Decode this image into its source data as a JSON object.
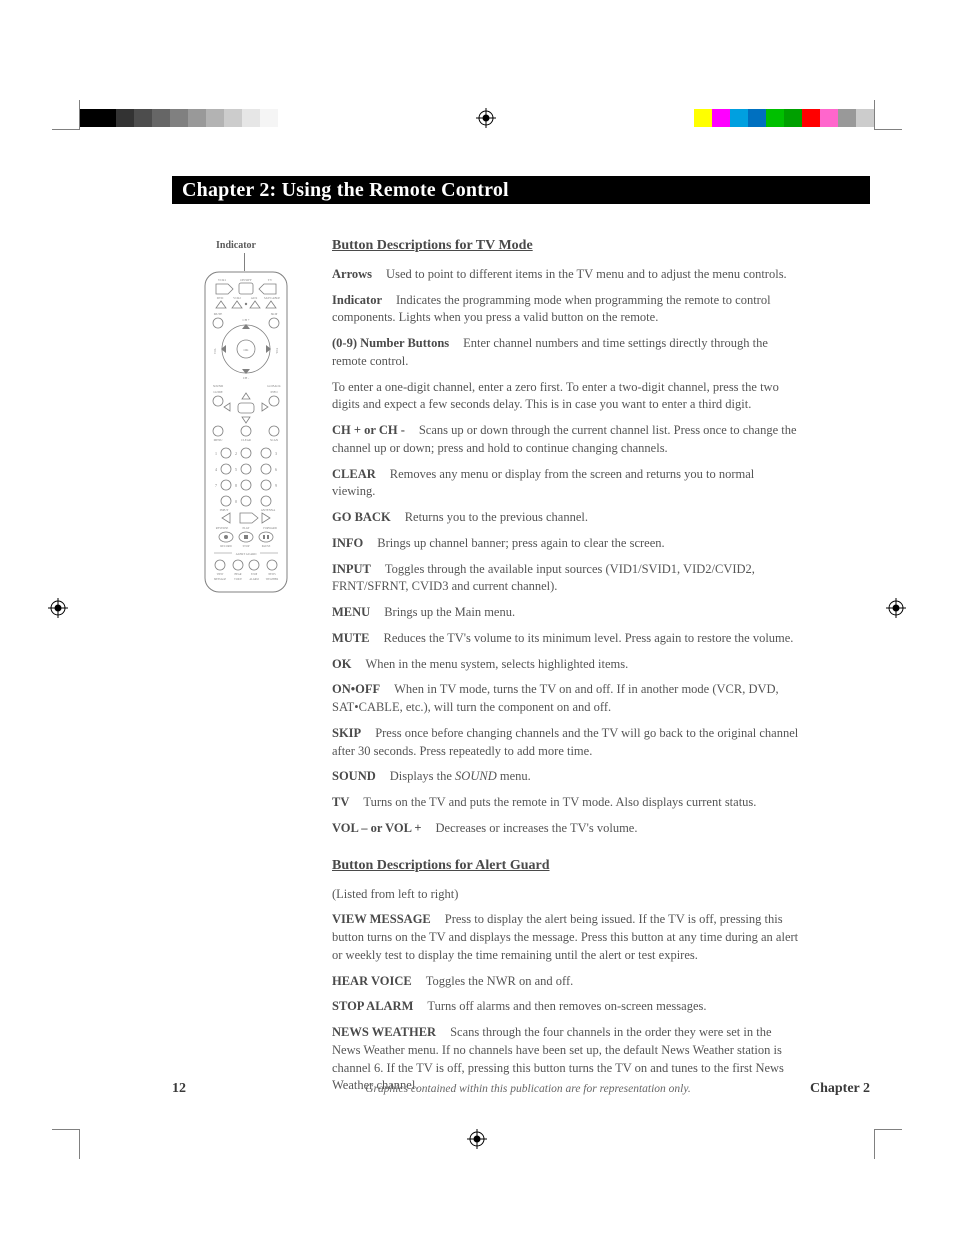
{
  "crop_color": "#808080",
  "colorbar_left": [
    {
      "w": 36,
      "c": "#000000"
    },
    {
      "w": 18,
      "c": "#333333"
    },
    {
      "w": 18,
      "c": "#4d4d4d"
    },
    {
      "w": 18,
      "c": "#666666"
    },
    {
      "w": 18,
      "c": "#808080"
    },
    {
      "w": 18,
      "c": "#999999"
    },
    {
      "w": 18,
      "c": "#b3b3b3"
    },
    {
      "w": 18,
      "c": "#cccccc"
    },
    {
      "w": 18,
      "c": "#e6e6e6"
    },
    {
      "w": 18,
      "c": "#f5f5f5"
    }
  ],
  "colorbar_right": [
    {
      "w": 18,
      "c": "#ffff00"
    },
    {
      "w": 18,
      "c": "#ff00ff"
    },
    {
      "w": 18,
      "c": "#00a0e0"
    },
    {
      "w": 18,
      "c": "#0070c0"
    },
    {
      "w": 18,
      "c": "#00c000"
    },
    {
      "w": 18,
      "c": "#00a000"
    },
    {
      "w": 18,
      "c": "#ff0000"
    },
    {
      "w": 18,
      "c": "#ff66cc"
    },
    {
      "w": 18,
      "c": "#999999"
    },
    {
      "w": 18,
      "c": "#cccccc"
    }
  ],
  "chapter_title": "Chapter 2: Using the Remote Control",
  "indicator_label": "Indicator",
  "section1_title": "Button Descriptions for TV Mode",
  "descriptions1": [
    {
      "btn": "Arrows",
      "text": "Used to point to different items in the TV menu and to adjust the menu controls."
    },
    {
      "btn": "Indicator",
      "text": "Indicates the programming mode when programming the remote to control components. Lights when you press a valid button on the remote."
    },
    {
      "btn": "(0-9) Number Buttons",
      "text": "Enter channel numbers and time settings directly through the remote control."
    },
    {
      "btn": "",
      "text": "To enter a one-digit channel, enter a zero first. To enter a two-digit channel, press the two digits and expect a few seconds delay. This is in case you want to enter a third digit."
    },
    {
      "btn": "CH + or CH -",
      "text": "Scans up or down through the current channel list. Press once to change the channel up or down; press and hold to continue changing channels."
    },
    {
      "btn": "CLEAR",
      "text": "Removes any menu or display from the screen and returns you to normal viewing."
    },
    {
      "btn": "GO BACK",
      "text": "Returns you to the previous channel."
    },
    {
      "btn": "INFO",
      "text": "Brings up channel banner; press again to clear the screen."
    },
    {
      "btn": "INPUT",
      "text": "Toggles through the available input sources (VID1/SVID1, VID2/CVID2, FRNT/SFRNT, CVID3 and current channel)."
    },
    {
      "btn": "MENU",
      "text": "Brings up the Main menu."
    },
    {
      "btn": "MUTE",
      "text": "Reduces the TV's volume to its minimum level. Press again to restore the volume."
    },
    {
      "btn": "OK",
      "text": "When in the menu system, selects highlighted items."
    },
    {
      "btn": "ON•OFF",
      "text": "When in TV mode, turns the TV on and off. If in another mode (VCR, DVD, SAT•CABLE, etc.), will turn the component on and off."
    },
    {
      "btn": "SKIP",
      "text": "Press once before changing channels and the TV will go back to the original channel after 30 seconds. Press repeatedly to add more time."
    },
    {
      "btn": "SOUND",
      "text": "Displays the ",
      "italic": "SOUND",
      "text2": " menu."
    },
    {
      "btn": "TV",
      "text": "Turns on the TV and puts the remote in TV mode. Also displays current status."
    },
    {
      "btn": "VOL – or VOL +",
      "text": "Decreases or increases the TV's volume."
    }
  ],
  "section2_title": "Button Descriptions for Alert Guard",
  "section2_note": "(Listed from left to right)",
  "descriptions2": [
    {
      "btn": "VIEW MESSAGE",
      "text": "Press to display the alert being issued. If the TV is off, pressing this button turns on the TV and displays the message. Press this button at any time during an alert or weekly test to display the time remaining until the alert or test expires."
    },
    {
      "btn": "HEAR VOICE",
      "text": "Toggles the NWR on and off."
    },
    {
      "btn": "STOP ALARM",
      "text": "Turns off alarms and then removes on-screen messages."
    },
    {
      "btn": "NEWS WEATHER",
      "text": "Scans through the four channels in the order they were set in the News Weather menu. If no channels have been set up, the default News Weather station is channel 6. If the TV is off, pressing this button turns the TV on and tunes to the first News Weather channel."
    }
  ],
  "footer": {
    "page": "12",
    "disclaimer": "Graphics contained within this publication are for representation only.",
    "chapter": "Chapter 2"
  },
  "remote": {
    "outline": "#808080",
    "labels": [
      "VCR1",
      "ON•OFF",
      "TV",
      "DVD",
      "VCR2",
      "AUX",
      "SAT•CABLE",
      "MUTE",
      "SKIP",
      "CH",
      "VOL",
      "OK",
      "SOUND",
      "GO BACK",
      "GUIDE",
      "INFO",
      "MENU",
      "CLEAR",
      "SCAN",
      "INPUT",
      "ANTENNA",
      "REVERSE",
      "PLAY",
      "FORWARD",
      "RECORD",
      "STOP",
      "PAUSE",
      "ALERT GUARD",
      "VIEW",
      "HEAR",
      "STOP",
      "NEWS",
      "MESSAGE",
      "VOICE",
      "ALARM",
      "WEATHER"
    ]
  }
}
